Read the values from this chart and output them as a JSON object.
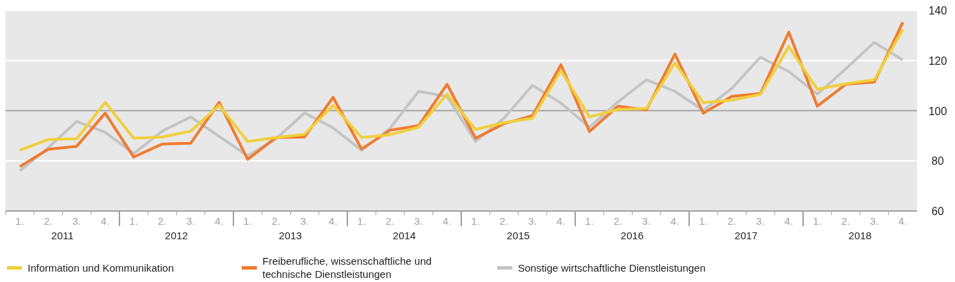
{
  "chart_data": {
    "type": "line",
    "categories": [
      "1.",
      "2.",
      "3.",
      "4.",
      "1.",
      "2.",
      "3.",
      "4.",
      "1.",
      "2.",
      "3.",
      "4.",
      "1.",
      "2.",
      "3.",
      "4.",
      "1.",
      "2.",
      "3.",
      "4.",
      "1.",
      "2.",
      "3.",
      "4.",
      "1.",
      "2.",
      "3.",
      "4.",
      "1.",
      "2.",
      "3.",
      "4."
    ],
    "series": [
      {
        "name": "Information und Kommunikation",
        "color": "#f0cf3c",
        "values": [
          84.2,
          88.5,
          88.8,
          103.3,
          89,
          89.5,
          91.8,
          102.1,
          87.7,
          89.3,
          90.6,
          102.1,
          89.3,
          90.4,
          93.4,
          106.6,
          92.5,
          95.2,
          97,
          116,
          97.5,
          100.5,
          100.9,
          119,
          103.2,
          104.2,
          106.5,
          125.6,
          108.5,
          110.7,
          112.3,
          132.4
        ]
      },
      {
        "name": "Freiberufliche, wissenschaftliche und technische Dienstleistungen",
        "color": "#f07b2f",
        "values": [
          77.7,
          84.6,
          85.8,
          99,
          81.5,
          86.7,
          87,
          103.3,
          80.6,
          89.3,
          89.5,
          105.3,
          84.7,
          92.2,
          94,
          110.5,
          89,
          94.8,
          98,
          118.3,
          91.7,
          101.8,
          100.3,
          122.6,
          99,
          105.7,
          106.8,
          131.3,
          101.8,
          110.5,
          111.4,
          135.2
        ]
      },
      {
        "name": "Sonstige wirtschaftliche Dienstleistungen",
        "color": "#c4c4c4",
        "values": [
          76,
          85.2,
          95.7,
          91.4,
          82.9,
          91.8,
          97.5,
          89.7,
          82,
          88.8,
          99.1,
          93.1,
          84.2,
          92.9,
          107.7,
          105.7,
          87.7,
          97,
          110.1,
          103,
          93.4,
          103.5,
          112.3,
          107.7,
          100.1,
          108.9,
          121.3,
          115.6,
          106.6,
          116.7,
          127.2,
          120.2
        ]
      }
    ],
    "ylim": [
      60,
      140
    ],
    "yticks": [
      60,
      80,
      100,
      120,
      140
    ],
    "grid": "y",
    "ref_lines": [
      {
        "axis": "y",
        "value": 100,
        "color": "#a0a0a0"
      }
    ],
    "annotations": [
      "2011",
      "2012",
      "2013",
      "2014",
      "2015",
      "2016",
      "2017",
      "2018"
    ],
    "legend": "bottom",
    "marker": "none",
    "line_style": "solid"
  }
}
